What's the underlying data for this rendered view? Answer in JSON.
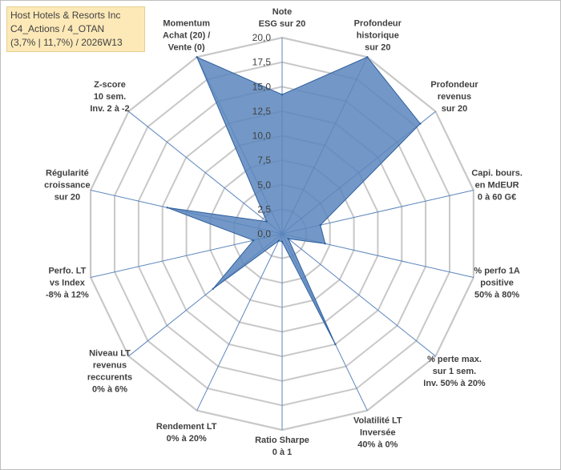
{
  "title_box": {
    "line1": "Host Hotels & Resorts Inc",
    "line2": "C4_Actions / 4_OTAN",
    "line3": "(3,7% | 11,7%) / 2026W13"
  },
  "colors": {
    "fill": "#5b86bd",
    "stroke": "#2f5f9e",
    "grid": "#c8c8c8",
    "spoke": "#5b86bd",
    "title_bg": "#fde9b8"
  },
  "chart_data": {
    "type": "radar",
    "rlim": [
      0,
      20
    ],
    "ticks": [
      "0,0",
      "2,5",
      "5,0",
      "7,5",
      "10,0",
      "12,5",
      "15,0",
      "17,5",
      "20,0"
    ],
    "grid": true,
    "axes": [
      [
        "Note",
        "ESG sur 20"
      ],
      [
        "Profondeur",
        "historique",
        "sur 20"
      ],
      [
        "Profondeur",
        "revenus",
        "sur 20"
      ],
      [
        "Capi. bours.",
        "en MdEUR",
        "0 à 60 G€"
      ],
      [
        "% perfo 1A",
        "positive",
        "50% à 80%"
      ],
      [
        "% perte max.",
        "sur 1 sem.",
        "Inv. 50% à 20%"
      ],
      [
        "Volatilité LT",
        "Inversée",
        "40% à 0%"
      ],
      [
        "Ratio Sharpe",
        "0 à 1"
      ],
      [
        "Rendement LT",
        "0% à 20%"
      ],
      [
        "Niveau LT",
        "revenus",
        "reccurents",
        "0% à 6%"
      ],
      [
        "Perfo. LT",
        "vs Index",
        "-8% à 12%"
      ],
      [
        "Régularité",
        "croissance",
        "sur 20"
      ],
      [
        "Z-score",
        "10 sem.",
        "Inv. 2 à -2"
      ],
      [
        "Momentum",
        "Achat (20) /",
        "Vente (0)"
      ]
    ],
    "series": [
      {
        "values": [
          14.2,
          20.0,
          18.0,
          4.0,
          4.5,
          0.8,
          12.5,
          0.8,
          0.8,
          9.0,
          3.0,
          12.0,
          2.0,
          20.0
        ]
      }
    ]
  }
}
